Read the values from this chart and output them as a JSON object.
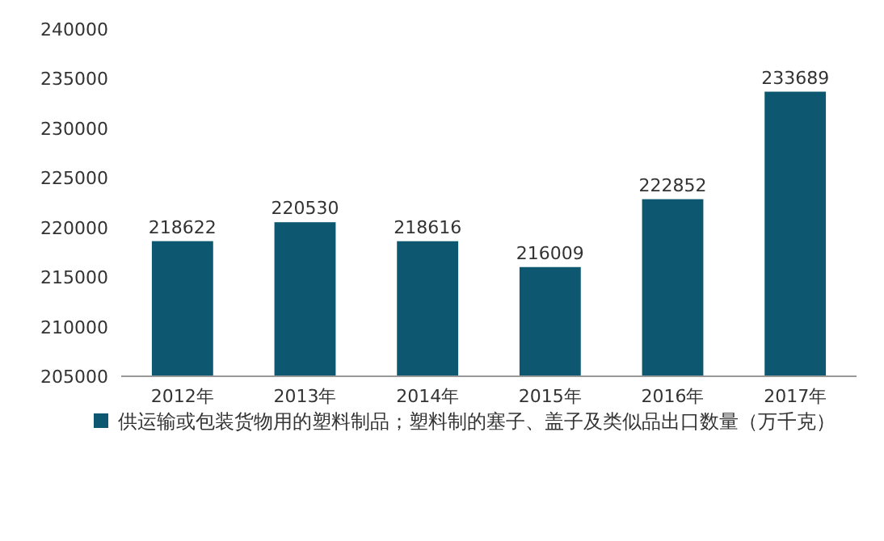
{
  "chart_data": {
    "type": "bar",
    "categories": [
      "2012年",
      "2013年",
      "2014年",
      "2015年",
      "2016年",
      "2017年"
    ],
    "series": [
      {
        "name": "供运输或包装货物用的塑料制品；塑料制的塞子、盖子及类似品出口数量（万千克）",
        "color": "#0d5870",
        "values": [
          218622,
          220530,
          218616,
          216009,
          222852,
          233689
        ]
      }
    ],
    "ylim": [
      205000,
      240000
    ],
    "yticks": [
      205000,
      210000,
      215000,
      220000,
      225000,
      230000,
      235000,
      240000
    ],
    "data_labels": true,
    "legend": "bottom"
  }
}
